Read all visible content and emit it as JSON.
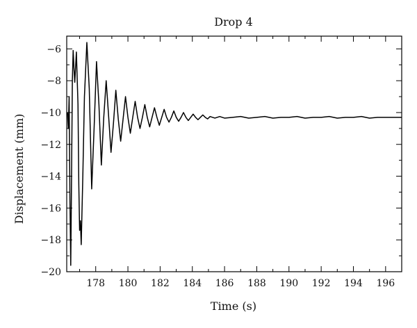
{
  "chart_data": {
    "type": "line",
    "title": "Drop 4",
    "xlabel": "Time (s)",
    "ylabel": "Displacement (mm)",
    "xlim": [
      176.2,
      197.0
    ],
    "ylim": [
      -20,
      -5.2
    ],
    "grid": false,
    "x_ticks": [
      178,
      180,
      182,
      184,
      186,
      188,
      190,
      192,
      194,
      196
    ],
    "y_ticks": [
      -20,
      -18,
      -16,
      -14,
      -12,
      -10,
      -8,
      -6
    ],
    "line_color": "#000000",
    "series": [
      {
        "x": [
          176.25,
          176.3,
          176.35,
          176.4,
          176.45,
          176.5,
          176.55,
          176.6,
          176.65,
          176.7,
          176.8,
          176.9,
          176.95,
          177.0,
          177.05,
          177.1,
          177.2,
          177.3,
          177.45,
          177.6,
          177.75,
          177.9,
          178.05,
          178.2,
          178.35,
          178.5,
          178.65,
          178.8,
          178.95,
          179.1,
          179.25,
          179.4,
          179.55,
          179.7,
          179.85,
          180.0,
          180.15,
          180.3,
          180.45,
          180.6,
          180.75,
          180.9,
          181.05,
          181.2,
          181.35,
          181.5,
          181.65,
          181.8,
          181.95,
          182.1,
          182.25,
          182.4,
          182.55,
          182.7,
          182.85,
          183.0,
          183.15,
          183.3,
          183.45,
          183.6,
          183.75,
          183.9,
          184.05,
          184.2,
          184.35,
          184.5,
          184.65,
          184.8,
          184.95,
          185.1,
          185.4,
          185.7,
          186.0,
          186.5,
          187.0,
          187.5,
          188.0,
          188.5,
          189.0,
          189.5,
          190.0,
          190.5,
          191.0,
          191.5,
          192.0,
          192.5,
          193.0,
          193.5,
          194.0,
          194.5,
          195.0,
          195.5,
          196.0,
          196.5,
          197.0
        ],
        "values": [
          -10.0,
          -11.0,
          -9.0,
          -15.5,
          -19.6,
          -14.0,
          -8.0,
          -6.1,
          -7.2,
          -8.1,
          -6.2,
          -9.5,
          -14.5,
          -17.4,
          -16.8,
          -18.3,
          -14.0,
          -9.0,
          -5.6,
          -8.5,
          -14.8,
          -11.0,
          -6.8,
          -9.5,
          -13.3,
          -10.3,
          -8.0,
          -10.2,
          -12.5,
          -10.7,
          -8.6,
          -10.4,
          -11.8,
          -10.4,
          -9.0,
          -10.3,
          -11.3,
          -10.3,
          -9.3,
          -10.3,
          -11.0,
          -10.3,
          -9.5,
          -10.3,
          -10.9,
          -10.3,
          -9.7,
          -10.3,
          -10.8,
          -10.3,
          -9.8,
          -10.3,
          -10.6,
          -10.3,
          -9.9,
          -10.3,
          -10.55,
          -10.3,
          -10.0,
          -10.3,
          -10.5,
          -10.3,
          -10.1,
          -10.3,
          -10.45,
          -10.3,
          -10.15,
          -10.3,
          -10.4,
          -10.25,
          -10.35,
          -10.25,
          -10.35,
          -10.3,
          -10.25,
          -10.35,
          -10.3,
          -10.25,
          -10.35,
          -10.3,
          -10.3,
          -10.25,
          -10.35,
          -10.3,
          -10.3,
          -10.25,
          -10.35,
          -10.3,
          -10.3,
          -10.25,
          -10.35,
          -10.3,
          -10.3,
          -10.3,
          -10.3
        ]
      }
    ]
  }
}
